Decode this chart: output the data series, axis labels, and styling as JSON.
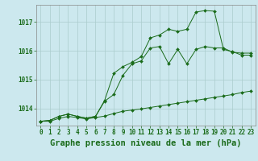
{
  "title": "Graphe pression niveau de la mer (hPa)",
  "background_color": "#cce8ee",
  "grid_color": "#aacccc",
  "line_color": "#1a6b1a",
  "hours": [
    0,
    1,
    2,
    3,
    4,
    5,
    6,
    7,
    8,
    9,
    10,
    11,
    12,
    13,
    14,
    15,
    16,
    17,
    18,
    19,
    20,
    21,
    22,
    23
  ],
  "line1": [
    1013.55,
    1013.55,
    1013.65,
    1013.72,
    1013.68,
    1013.63,
    1013.68,
    1013.73,
    1013.82,
    1013.9,
    1013.94,
    1013.98,
    1014.03,
    1014.08,
    1014.13,
    1014.18,
    1014.23,
    1014.28,
    1014.33,
    1014.38,
    1014.43,
    1014.48,
    1014.55,
    1014.6
  ],
  "line2": [
    1013.55,
    1013.58,
    1013.72,
    1013.8,
    1013.72,
    1013.66,
    1013.72,
    1014.25,
    1014.48,
    1015.15,
    1015.55,
    1015.65,
    1016.1,
    1016.15,
    1015.55,
    1016.05,
    1015.55,
    1016.05,
    1016.15,
    1016.1,
    1016.1,
    1015.95,
    1015.92,
    1015.92
  ],
  "line3": [
    1013.55,
    1013.58,
    1013.72,
    1013.8,
    1013.72,
    1013.66,
    1013.72,
    1014.28,
    1015.22,
    1015.45,
    1015.6,
    1015.8,
    1016.45,
    1016.55,
    1016.75,
    1016.68,
    1016.75,
    1017.35,
    1017.4,
    1017.38,
    1016.05,
    1015.97,
    1015.85,
    1015.85
  ],
  "ylim": [
    1013.4,
    1017.6
  ],
  "yticks": [
    1014,
    1015,
    1016,
    1017
  ],
  "title_fontsize": 7.5,
  "tick_fontsize": 5.5
}
